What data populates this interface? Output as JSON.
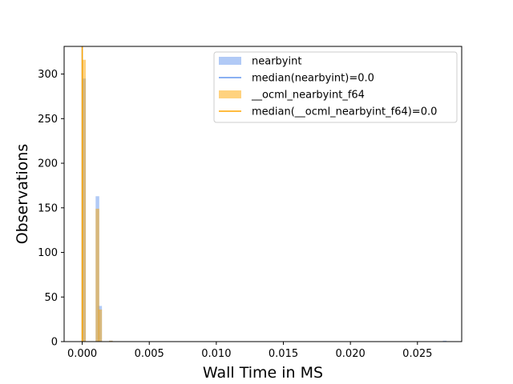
{
  "chart_data": {
    "type": "bar",
    "xlabel": "Wall Time in MS",
    "ylabel": "Observations",
    "xlim": [
      -0.00135,
      0.0283
    ],
    "ylim": [
      0,
      331
    ],
    "xticks": [
      0.0,
      0.005,
      0.01,
      0.015,
      0.02,
      0.025
    ],
    "xtick_labels": [
      "0.000",
      "0.005",
      "0.010",
      "0.015",
      "0.020",
      "0.025"
    ],
    "yticks": [
      0,
      50,
      100,
      150,
      200,
      250,
      300
    ],
    "ytick_labels": [
      "0",
      "50",
      "100",
      "150",
      "200",
      "250",
      "300"
    ],
    "bin_width": 0.00027,
    "legend_position": "top-right",
    "grid": false,
    "series": [
      {
        "name": "nearbyint",
        "kind": "histogram",
        "color": "#6495ED",
        "alpha": 0.5,
        "bins": [
          {
            "x": 0.0,
            "count": 295
          },
          {
            "x": 0.001,
            "count": 163
          },
          {
            "x": 0.0012,
            "count": 40
          },
          {
            "x": 0.002,
            "count": 1
          },
          {
            "x": 0.0269,
            "count": 1
          }
        ]
      },
      {
        "name": "__ocml_nearbyint_f64",
        "kind": "histogram",
        "color": "#FFA500",
        "alpha": 0.5,
        "bins": [
          {
            "x": 0.0,
            "count": 316
          },
          {
            "x": 0.001,
            "count": 149
          },
          {
            "x": 0.0012,
            "count": 36
          },
          {
            "x": 0.002,
            "count": 1
          }
        ]
      }
    ],
    "medians": [
      {
        "name": "median(nearbyint)=0.0",
        "value": 0.0,
        "color": "#6495ED"
      },
      {
        "name": "median(__ocml_nearbyint_f64)=0.0",
        "value": 0.0,
        "color": "#FFA500"
      }
    ],
    "legend": [
      {
        "label": "nearbyint",
        "kind": "patch",
        "color": "#6495ED",
        "alpha": 0.5
      },
      {
        "label": "median(nearbyint)=0.0",
        "kind": "line",
        "color": "#6495ED"
      },
      {
        "label": "__ocml_nearbyint_f64",
        "kind": "patch",
        "color": "#FFA500",
        "alpha": 0.5
      },
      {
        "label": "median(__ocml_nearbyint_f64)=0.0",
        "kind": "line",
        "color": "#FFA500"
      }
    ]
  }
}
